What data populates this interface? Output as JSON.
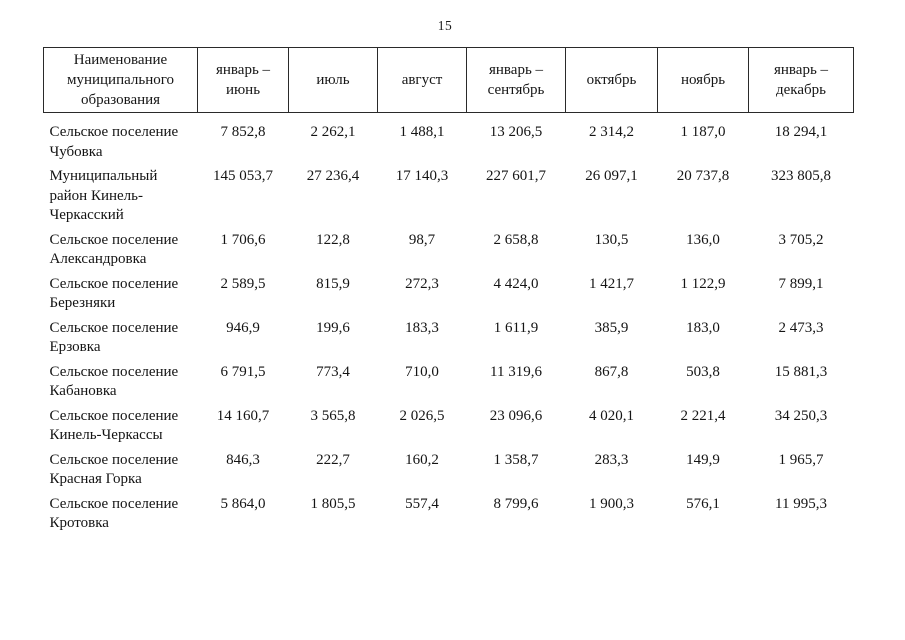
{
  "page": {
    "number": "15"
  },
  "table": {
    "columns": [
      {
        "label": "Наименование муниципального образования"
      },
      {
        "label": "январь – июнь"
      },
      {
        "label": "июль"
      },
      {
        "label": "август"
      },
      {
        "label": "январь – сентябрь"
      },
      {
        "label": "октябрь"
      },
      {
        "label": "ноябрь"
      },
      {
        "label": "январь – декабрь"
      }
    ],
    "rows": [
      {
        "name": "Сельское поселение Чубовка",
        "values": [
          "7 852,8",
          "2 262,1",
          "1 488,1",
          "13 206,5",
          "2 314,2",
          "1 187,0",
          "18 294,1"
        ]
      },
      {
        "name": "Муниципальный район Кинель-Черкасский",
        "values": [
          "145 053,7",
          "27 236,4",
          "17 140,3",
          "227 601,7",
          "26 097,1",
          "20 737,8",
          "323 805,8"
        ]
      },
      {
        "name": "Сельское поселение Александровка",
        "values": [
          "1 706,6",
          "122,8",
          "98,7",
          "2 658,8",
          "130,5",
          "136,0",
          "3 705,2"
        ]
      },
      {
        "name": "Сельское поселение Березняки",
        "values": [
          "2 589,5",
          "815,9",
          "272,3",
          "4 424,0",
          "1 421,7",
          "1 122,9",
          "7 899,1"
        ]
      },
      {
        "name": "Сельское поселение Ерзовка",
        "values": [
          "946,9",
          "199,6",
          "183,3",
          "1 611,9",
          "385,9",
          "183,0",
          "2 473,3"
        ]
      },
      {
        "name": "Сельское поселение Кабановка",
        "values": [
          "6 791,5",
          "773,4",
          "710,0",
          "11 319,6",
          "867,8",
          "503,8",
          "15 881,3"
        ]
      },
      {
        "name": "Сельское поселение Кинель-Черкассы",
        "values": [
          "14 160,7",
          "3 565,8",
          "2 026,5",
          "23 096,6",
          "4 020,1",
          "2 221,4",
          "34 250,3"
        ]
      },
      {
        "name": "Сельское поселение Красная Горка",
        "values": [
          "846,3",
          "222,7",
          "160,2",
          "1 358,7",
          "283,3",
          "149,9",
          "1 965,7"
        ]
      },
      {
        "name": "Сельское поселение Кротовка",
        "values": [
          "5 864,0",
          "1 805,5",
          "557,4",
          "8 799,6",
          "1 900,3",
          "576,1",
          "11 995,3"
        ]
      }
    ]
  }
}
